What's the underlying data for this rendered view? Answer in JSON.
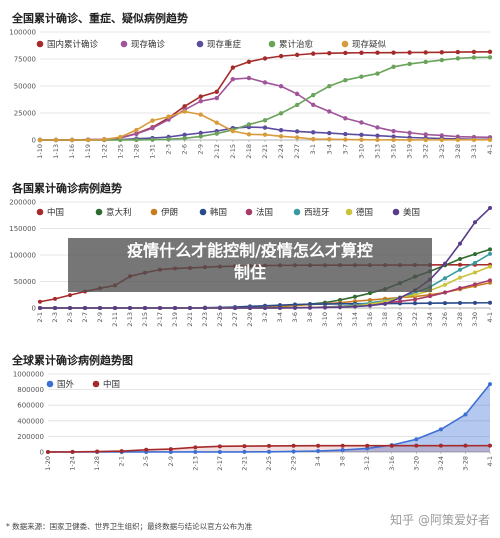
{
  "chart_data": [
    {
      "type": "line",
      "title": "全国累计确诊、重症、疑似病例趋势",
      "legend_position": "top",
      "grid": true,
      "ylim": [
        0,
        100000
      ],
      "yticks": [
        "0",
        "25000",
        "50000",
        "75000",
        "100000"
      ],
      "x": [
        "1-10",
        "1-13",
        "1-16",
        "1-19",
        "1-22",
        "1-25",
        "1-28",
        "1-31",
        "2-3",
        "2-6",
        "2-9",
        "2-12",
        "2-15",
        "2-18",
        "2-21",
        "2-24",
        "2-27",
        "3-1",
        "3-4",
        "3-7",
        "3-10",
        "3-13",
        "3-16",
        "3-19",
        "3-22",
        "3-25",
        "3-28",
        "3-31",
        "4-1"
      ],
      "series": [
        {
          "name": "国内累计确诊",
          "color": "#a52a2a",
          "values": [
            41,
            41,
            45,
            291,
            571,
            1975,
            5974,
            11791,
            20438,
            31161,
            40171,
            44653,
            67102,
            72436,
            75567,
            77658,
            78824,
            79968,
            80409,
            80651,
            80778,
            80824,
            80860,
            81008,
            81093,
            81218,
            81394,
            81554,
            81620
          ]
        },
        {
          "name": "现存确诊",
          "color": "#a0559a",
          "values": [
            41,
            40,
            40,
            270,
            540,
            1870,
            5640,
            11000,
            18900,
            28000,
            35900,
            38800,
            56300,
            57400,
            53300,
            49800,
            42700,
            32600,
            26400,
            20100,
            16200,
            11600,
            8300,
            6700,
            5100,
            4200,
            3100,
            2700,
            2500
          ]
        },
        {
          "name": "现存重症",
          "color": "#5b4c9e",
          "values": [
            0,
            0,
            0,
            35,
            95,
            324,
            1239,
            1795,
            2788,
            4821,
            6484,
            8204,
            11053,
            11977,
            11477,
            9126,
            7952,
            7110,
            6416,
            5489,
            4794,
            4020,
            3226,
            2314,
            1845,
            1399,
            1034,
            633,
            600
          ]
        },
        {
          "name": "累计治愈",
          "color": "#6aa35a",
          "values": [
            0,
            0,
            0,
            25,
            28,
            49,
            103,
            243,
            632,
            1540,
            3281,
            5911,
            9419,
            14376,
            18264,
            24734,
            32495,
            41625,
            49856,
            55404,
            58600,
            61500,
            67749,
            70420,
            72244,
            74051,
            75582,
            76405,
            76600
          ]
        },
        {
          "name": "现存疑似",
          "color": "#d89b3a",
          "values": [
            0,
            0,
            0,
            0,
            393,
            2684,
            9239,
            17988,
            21558,
            26359,
            23589,
            16067,
            8228,
            5248,
            4922,
            3434,
            2358,
            851,
            715,
            458,
            285,
            115,
            134,
            104,
            106,
            114,
            174,
            172,
            170
          ]
        }
      ]
    },
    {
      "type": "line",
      "title": "各国累计确诊病例趋势",
      "legend_position": "top",
      "grid": true,
      "ylim": [
        0,
        200000
      ],
      "yticks": [
        "0",
        "50000",
        "100000",
        "150000",
        "200000"
      ],
      "x": [
        "2-1",
        "2-3",
        "2-5",
        "2-7",
        "2-9",
        "2-11",
        "2-13",
        "2-15",
        "2-17",
        "2-19",
        "2-21",
        "2-23",
        "2-25",
        "2-27",
        "2-29",
        "3-2",
        "3-4",
        "3-6",
        "3-8",
        "3-10",
        "3-12",
        "3-14",
        "3-16",
        "3-18",
        "3-20",
        "3-22",
        "3-24",
        "3-26",
        "3-28",
        "3-30",
        "4-1"
      ],
      "series": [
        {
          "name": "中国",
          "color": "#a52a2a",
          "values": [
            11791,
            17205,
            24324,
            31161,
            37198,
            42638,
            59804,
            66492,
            72436,
            74576,
            75567,
            77042,
            78166,
            78824,
            79394,
            80026,
            80409,
            80651,
            80735,
            80778,
            80813,
            80860,
            80881,
            80928,
            81008,
            81093,
            81218,
            81394,
            81554,
            81620,
            81620
          ]
        },
        {
          "name": "意大利",
          "color": "#2e6b2e",
          "values": [
            0,
            2,
            2,
            3,
            3,
            3,
            3,
            3,
            3,
            3,
            20,
            155,
            322,
            655,
            1128,
            2036,
            3089,
            4636,
            7375,
            10149,
            15113,
            21157,
            27980,
            35713,
            47021,
            59138,
            69176,
            80589,
            92472,
            101739,
            110574
          ]
        },
        {
          "name": "伊朗",
          "color": "#c87c1e",
          "values": [
            0,
            0,
            0,
            0,
            0,
            0,
            0,
            0,
            0,
            5,
            18,
            43,
            95,
            245,
            593,
            1501,
            2922,
            4747,
            6566,
            8042,
            10075,
            12729,
            14991,
            17361,
            19644,
            21638,
            24811,
            29406,
            35408,
            41495,
            47593
          ]
        },
        {
          "name": "韩国",
          "color": "#2a4a8a",
          "values": [
            12,
            15,
            23,
            24,
            27,
            28,
            28,
            28,
            30,
            51,
            204,
            602,
            977,
            1766,
            3150,
            4212,
            5328,
            6593,
            7313,
            7513,
            7869,
            8086,
            8236,
            8413,
            8652,
            8897,
            9037,
            9241,
            9478,
            9661,
            9887
          ]
        },
        {
          "name": "法国",
          "color": "#a83a6a",
          "values": [
            6,
            6,
            6,
            6,
            11,
            11,
            11,
            12,
            12,
            12,
            12,
            12,
            14,
            38,
            100,
            191,
            285,
            653,
            1126,
            1784,
            2876,
            4469,
            6633,
            9134,
            12612,
            16018,
            22304,
            29155,
            37575,
            44550,
            52128
          ]
        },
        {
          "name": "西班牙",
          "color": "#3a9aa0",
          "values": [
            1,
            1,
            1,
            1,
            2,
            2,
            2,
            2,
            2,
            2,
            2,
            2,
            2,
            15,
            45,
            120,
            222,
            400,
            673,
            1639,
            2950,
            5753,
            9942,
            13716,
            19980,
            28572,
            39673,
            56188,
            72248,
            85195,
            102136
          ]
        },
        {
          "name": "德国",
          "color": "#c9c23a",
          "values": [
            7,
            12,
            12,
            13,
            14,
            16,
            16,
            16,
            16,
            16,
            16,
            16,
            18,
            46,
            79,
            150,
            262,
            670,
            1040,
            1457,
            2369,
            3675,
            7272,
            12327,
            19848,
            24873,
            32986,
            43938,
            57298,
            66885,
            77981
          ]
        },
        {
          "name": "美国",
          "color": "#5a3c8a",
          "values": [
            8,
            11,
            11,
            12,
            12,
            13,
            14,
            15,
            15,
            15,
            15,
            15,
            15,
            60,
            68,
            100,
            150,
            250,
            500,
            1000,
            1600,
            2800,
            4600,
            7800,
            19100,
            33300,
            53700,
            83800,
            121500,
            161800,
            188600
          ]
        }
      ]
    },
    {
      "type": "area",
      "title": "全球累计确诊病例趋势图",
      "legend_position": "top",
      "grid": true,
      "ylim": [
        0,
        1000000
      ],
      "yticks": [
        "0",
        "200000",
        "400000",
        "600000",
        "800000",
        "1000000"
      ],
      "x": [
        "1-20",
        "1-24",
        "1-28",
        "2-1",
        "2-5",
        "2-9",
        "2-13",
        "2-17",
        "2-21",
        "2-25",
        "2-29",
        "3-4",
        "3-8",
        "3-12",
        "3-16",
        "3-20",
        "3-24",
        "3-28",
        "4-1"
      ],
      "series": [
        {
          "name": "国外",
          "color": "#3d6fd6",
          "values": [
            3,
            20,
            78,
            155,
            200,
            300,
            450,
            800,
            1300,
            2500,
            6900,
            12700,
            25600,
            46000,
            88000,
            163000,
            290000,
            480000,
            870000
          ]
        },
        {
          "name": "中国",
          "color": "#a52a2a",
          "values": [
            291,
            1287,
            5974,
            11791,
            28060,
            37198,
            59804,
            72436,
            75567,
            78166,
            79394,
            80409,
            80735,
            80813,
            80881,
            81008,
            81218,
            81554,
            81620
          ]
        }
      ]
    }
  ],
  "overlay": {
    "line1": "疫情什么才能控制/疫情怎么才算控",
    "line2": "制住"
  },
  "footer": {
    "source": "* 数据来源：国家卫健委、世界卫生组织；最终数据与结论以官方公布为准"
  },
  "watermark": "知乎 @阿策爱好者"
}
